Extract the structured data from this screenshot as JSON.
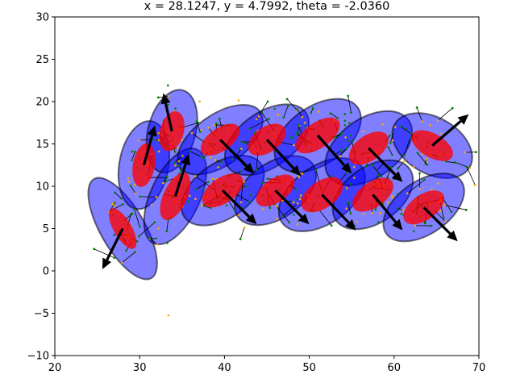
{
  "chart_data": {
    "type": "scatter",
    "title": "x = 28.1247, y = 4.7992, theta = -2.0360",
    "xlim": [
      20,
      70
    ],
    "ylim": [
      -10,
      30
    ],
    "xticks": [
      "20",
      "30",
      "40",
      "50",
      "60",
      "70"
    ],
    "yticks": [
      "−10",
      "−5",
      "0",
      "5",
      "10",
      "15",
      "20",
      "25",
      "30"
    ],
    "grid": false,
    "colors": {
      "outer_ellipse": "#0000ff",
      "inner_ellipse": "#ff0000",
      "particles": "#ffa500",
      "landmarks": "#008000",
      "arrows": "#000000"
    },
    "poses": [
      {
        "x": 28.0,
        "y": 5.0,
        "to_x": 25.6,
        "to_y": 0.2,
        "outer": [
          13.5,
          5.2
        ],
        "inner": [
          5.4,
          2.1
        ],
        "angle": 60
      },
      {
        "x": 30.5,
        "y": 12.5,
        "to_x": 31.8,
        "to_y": 17.2,
        "outer": [
          10.5,
          5.8
        ],
        "inner": [
          5.2,
          2.6
        ],
        "angle": -80
      },
      {
        "x": 33.8,
        "y": 16.5,
        "to_x": 32.8,
        "to_y": 21.0,
        "outer": [
          10.0,
          5.6
        ],
        "inner": [
          4.8,
          2.8
        ],
        "angle": -75
      },
      {
        "x": 34.2,
        "y": 8.8,
        "to_x": 35.8,
        "to_y": 13.8,
        "outer": [
          12.2,
          5.8
        ],
        "inner": [
          6.0,
          2.8
        ],
        "angle": -65
      },
      {
        "x": 39.5,
        "y": 15.5,
        "to_x": 43.5,
        "to_y": 11.5,
        "outer": [
          11.5,
          6.0
        ],
        "inner": [
          5.3,
          2.7
        ],
        "angle": -35
      },
      {
        "x": 39.8,
        "y": 9.5,
        "to_x": 43.8,
        "to_y": 5.5,
        "outer": [
          11.0,
          6.5
        ],
        "inner": [
          5.5,
          3.0
        ],
        "angle": -35
      },
      {
        "x": 45.0,
        "y": 15.5,
        "to_x": 49.0,
        "to_y": 11.2,
        "outer": [
          11.2,
          6.5
        ],
        "inner": [
          5.0,
          3.0
        ],
        "angle": -35
      },
      {
        "x": 46.0,
        "y": 9.5,
        "to_x": 50.0,
        "to_y": 5.5,
        "outer": [
          10.8,
          6.5
        ],
        "inner": [
          5.2,
          2.8
        ],
        "angle": -35
      },
      {
        "x": 51.0,
        "y": 16.0,
        "to_x": 55.0,
        "to_y": 11.5,
        "outer": [
          11.5,
          6.8
        ],
        "inner": [
          6.0,
          3.0
        ],
        "angle": -35
      },
      {
        "x": 51.5,
        "y": 9.0,
        "to_x": 55.5,
        "to_y": 4.8,
        "outer": [
          11.5,
          6.8
        ],
        "inner": [
          5.6,
          3.2
        ],
        "angle": -35
      },
      {
        "x": 57.0,
        "y": 14.5,
        "to_x": 61.0,
        "to_y": 10.5,
        "outer": [
          11.5,
          7.0
        ],
        "inner": [
          5.3,
          3.0
        ],
        "angle": -35
      },
      {
        "x": 57.5,
        "y": 9.0,
        "to_x": 61.0,
        "to_y": 4.8,
        "outer": [
          10.6,
          6.6
        ],
        "inner": [
          5.5,
          3.0
        ],
        "angle": -35
      },
      {
        "x": 64.5,
        "y": 14.8,
        "to_x": 68.8,
        "to_y": 18.5,
        "outer": [
          10.2,
          6.6
        ],
        "inner": [
          5.4,
          2.8
        ],
        "angle": 30
      },
      {
        "x": 63.5,
        "y": 7.5,
        "to_x": 67.5,
        "to_y": 3.5,
        "outer": [
          10.8,
          6.2
        ],
        "inner": [
          5.5,
          3.0
        ],
        "angle": -35
      }
    ]
  }
}
